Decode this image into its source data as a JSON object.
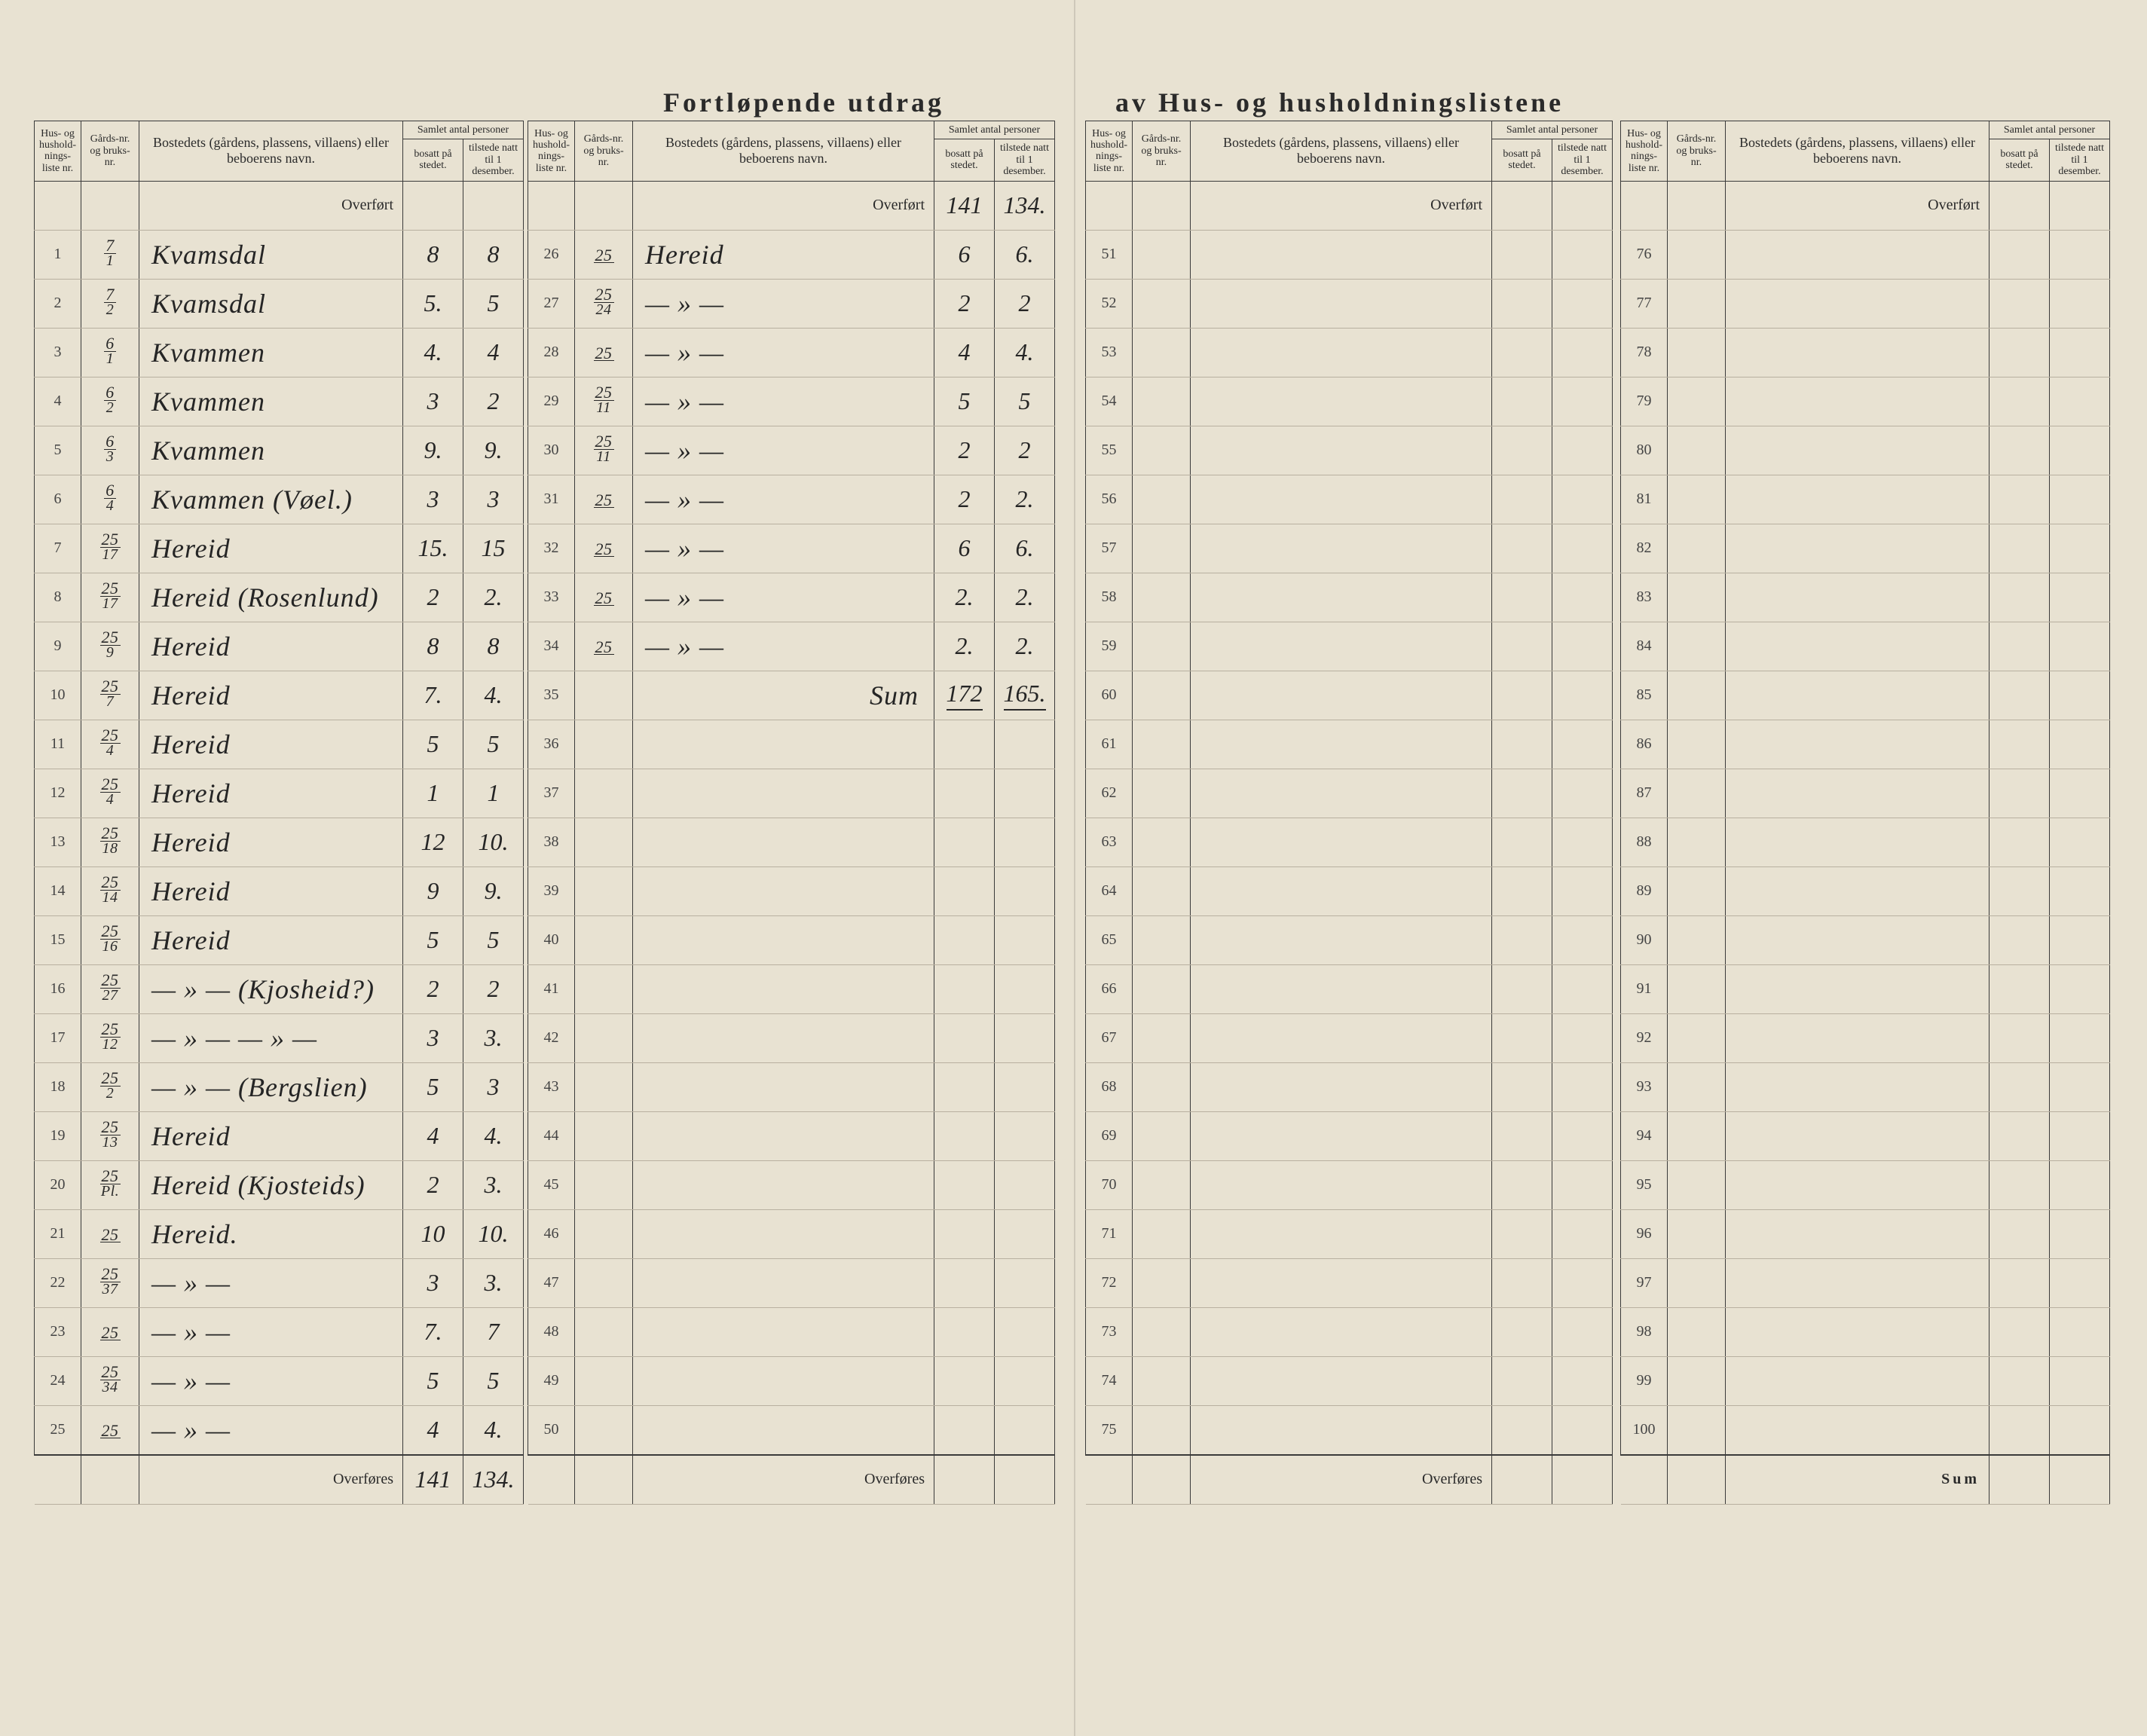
{
  "title_left": "Fortløpende utdrag",
  "title_right": "av Hus- og husholdningslistene",
  "headers": {
    "hus_liste": "Hus- og hushold-nings-liste nr.",
    "gards": "Gårds-nr. og bruks-nr.",
    "bosted": "Bostedets (gårdens, plassens, villaens) eller beboerens navn.",
    "samlet": "Samlet antal personer",
    "bosatt": "bosatt på stedet.",
    "tilstede": "tilstede natt til 1 desember."
  },
  "labels": {
    "overfort": "Overført",
    "overfores": "Overføres",
    "sum": "Sum",
    "sum_hand": "Sum"
  },
  "panel1": {
    "rows": [
      {
        "n": "1",
        "g_top": "7",
        "g_bot": "1",
        "name": "Kvamsdal",
        "b": "8",
        "t": "8"
      },
      {
        "n": "2",
        "g_top": "7",
        "g_bot": "2",
        "name": "Kvamsdal",
        "b": "5.",
        "t": "5"
      },
      {
        "n": "3",
        "g_top": "6",
        "g_bot": "1",
        "name": "Kvammen",
        "b": "4.",
        "t": "4"
      },
      {
        "n": "4",
        "g_top": "6",
        "g_bot": "2",
        "name": "Kvammen",
        "b": "3",
        "t": "2"
      },
      {
        "n": "5",
        "g_top": "6",
        "g_bot": "3",
        "name": "Kvammen",
        "b": "9.",
        "t": "9."
      },
      {
        "n": "6",
        "g_top": "6",
        "g_bot": "4",
        "name": "Kvammen (Vøel.)",
        "b": "3",
        "t": "3"
      },
      {
        "n": "7",
        "g_top": "25",
        "g_bot": "17",
        "name": "Hereid",
        "b": "15.",
        "t": "15"
      },
      {
        "n": "8",
        "g_top": "25",
        "g_bot": "17",
        "name": "Hereid (Rosenlund)",
        "b": "2",
        "t": "2."
      },
      {
        "n": "9",
        "g_top": "25",
        "g_bot": "9",
        "name": "Hereid",
        "b": "8",
        "t": "8"
      },
      {
        "n": "10",
        "g_top": "25",
        "g_bot": "7",
        "name": "Hereid",
        "b": "7.",
        "t": "4."
      },
      {
        "n": "11",
        "g_top": "25",
        "g_bot": "4",
        "name": "Hereid",
        "b": "5",
        "t": "5"
      },
      {
        "n": "12",
        "g_top": "25",
        "g_bot": "4",
        "name": "Hereid",
        "b": "1",
        "t": "1"
      },
      {
        "n": "13",
        "g_top": "25",
        "g_bot": "18",
        "name": "Hereid",
        "b": "12",
        "t": "10."
      },
      {
        "n": "14",
        "g_top": "25",
        "g_bot": "14",
        "name": "Hereid",
        "b": "9",
        "t": "9."
      },
      {
        "n": "15",
        "g_top": "25",
        "g_bot": "16",
        "name": "Hereid",
        "b": "5",
        "t": "5"
      },
      {
        "n": "16",
        "g_top": "25",
        "g_bot": "27",
        "name": "— » — (Kjosheid?)",
        "b": "2",
        "t": "2"
      },
      {
        "n": "17",
        "g_top": "25",
        "g_bot": "12",
        "name": "— » —    — » —",
        "b": "3",
        "t": "3."
      },
      {
        "n": "18",
        "g_top": "25",
        "g_bot": "2",
        "name": "— » — (Bergslien)",
        "b": "5",
        "t": "3"
      },
      {
        "n": "19",
        "g_top": "25",
        "g_bot": "13",
        "name": "Hereid",
        "b": "4",
        "t": "4."
      },
      {
        "n": "20",
        "g_top": "25",
        "g_bot": "Pl.",
        "name": "Hereid (Kjosteids)",
        "b": "2",
        "t": "3."
      },
      {
        "n": "21",
        "g_top": "25",
        "g_bot": "",
        "name": "Hereid.",
        "b": "10",
        "t": "10."
      },
      {
        "n": "22",
        "g_top": "25",
        "g_bot": "37",
        "name": "— » —",
        "b": "3",
        "t": "3."
      },
      {
        "n": "23",
        "g_top": "25",
        "g_bot": "",
        "name": "— » —",
        "b": "7.",
        "t": "7"
      },
      {
        "n": "24",
        "g_top": "25",
        "g_bot": "34",
        "name": "— » —",
        "b": "5",
        "t": "5"
      },
      {
        "n": "25",
        "g_top": "25",
        "g_bot": "",
        "name": "— » —",
        "b": "4",
        "t": "4."
      }
    ],
    "overfores_b": "141",
    "overfores_t": "134."
  },
  "panel2": {
    "overfort_b": "141",
    "overfort_t": "134.",
    "rows": [
      {
        "n": "26",
        "g_top": "25",
        "g_bot": "",
        "name": "Hereid",
        "b": "6",
        "t": "6."
      },
      {
        "n": "27",
        "g_top": "25",
        "g_bot": "24",
        "name": "— » —",
        "b": "2",
        "t": "2"
      },
      {
        "n": "28",
        "g_top": "25",
        "g_bot": "",
        "name": "— » —",
        "b": "4",
        "t": "4."
      },
      {
        "n": "29",
        "g_top": "25",
        "g_bot": "11",
        "name": "— » —",
        "b": "5",
        "t": "5"
      },
      {
        "n": "30",
        "g_top": "25",
        "g_bot": "11",
        "name": "— » —",
        "b": "2",
        "t": "2"
      },
      {
        "n": "31",
        "g_top": "25",
        "g_bot": "",
        "name": "— » —",
        "b": "2",
        "t": "2."
      },
      {
        "n": "32",
        "g_top": "25",
        "g_bot": "",
        "name": "— » —",
        "b": "6",
        "t": "6."
      },
      {
        "n": "33",
        "g_top": "25",
        "g_bot": "",
        "name": "— » —",
        "b": "2.",
        "t": "2."
      },
      {
        "n": "34",
        "g_top": "25",
        "g_bot": "",
        "name": "— » —",
        "b": "2.",
        "t": "2."
      },
      {
        "n": "35",
        "g_top": "",
        "g_bot": "",
        "name": "Sum",
        "b": "172",
        "t": "165.",
        "is_sum": true
      },
      {
        "n": "36"
      },
      {
        "n": "37"
      },
      {
        "n": "38"
      },
      {
        "n": "39"
      },
      {
        "n": "40"
      },
      {
        "n": "41"
      },
      {
        "n": "42"
      },
      {
        "n": "43"
      },
      {
        "n": "44"
      },
      {
        "n": "45"
      },
      {
        "n": "46"
      },
      {
        "n": "47"
      },
      {
        "n": "48"
      },
      {
        "n": "49"
      },
      {
        "n": "50"
      }
    ]
  },
  "panel3": {
    "rows": [
      {
        "n": "51"
      },
      {
        "n": "52"
      },
      {
        "n": "53"
      },
      {
        "n": "54"
      },
      {
        "n": "55"
      },
      {
        "n": "56"
      },
      {
        "n": "57"
      },
      {
        "n": "58"
      },
      {
        "n": "59"
      },
      {
        "n": "60"
      },
      {
        "n": "61"
      },
      {
        "n": "62"
      },
      {
        "n": "63"
      },
      {
        "n": "64"
      },
      {
        "n": "65"
      },
      {
        "n": "66"
      },
      {
        "n": "67"
      },
      {
        "n": "68"
      },
      {
        "n": "69"
      },
      {
        "n": "70"
      },
      {
        "n": "71"
      },
      {
        "n": "72"
      },
      {
        "n": "73"
      },
      {
        "n": "74"
      },
      {
        "n": "75"
      }
    ]
  },
  "panel4": {
    "rows": [
      {
        "n": "76"
      },
      {
        "n": "77"
      },
      {
        "n": "78"
      },
      {
        "n": "79"
      },
      {
        "n": "80"
      },
      {
        "n": "81"
      },
      {
        "n": "82"
      },
      {
        "n": "83"
      },
      {
        "n": "84"
      },
      {
        "n": "85"
      },
      {
        "n": "86"
      },
      {
        "n": "87"
      },
      {
        "n": "88"
      },
      {
        "n": "89"
      },
      {
        "n": "90"
      },
      {
        "n": "91"
      },
      {
        "n": "92"
      },
      {
        "n": "93"
      },
      {
        "n": "94"
      },
      {
        "n": "95"
      },
      {
        "n": "96"
      },
      {
        "n": "97"
      },
      {
        "n": "98"
      },
      {
        "n": "99"
      },
      {
        "n": "100"
      }
    ]
  }
}
